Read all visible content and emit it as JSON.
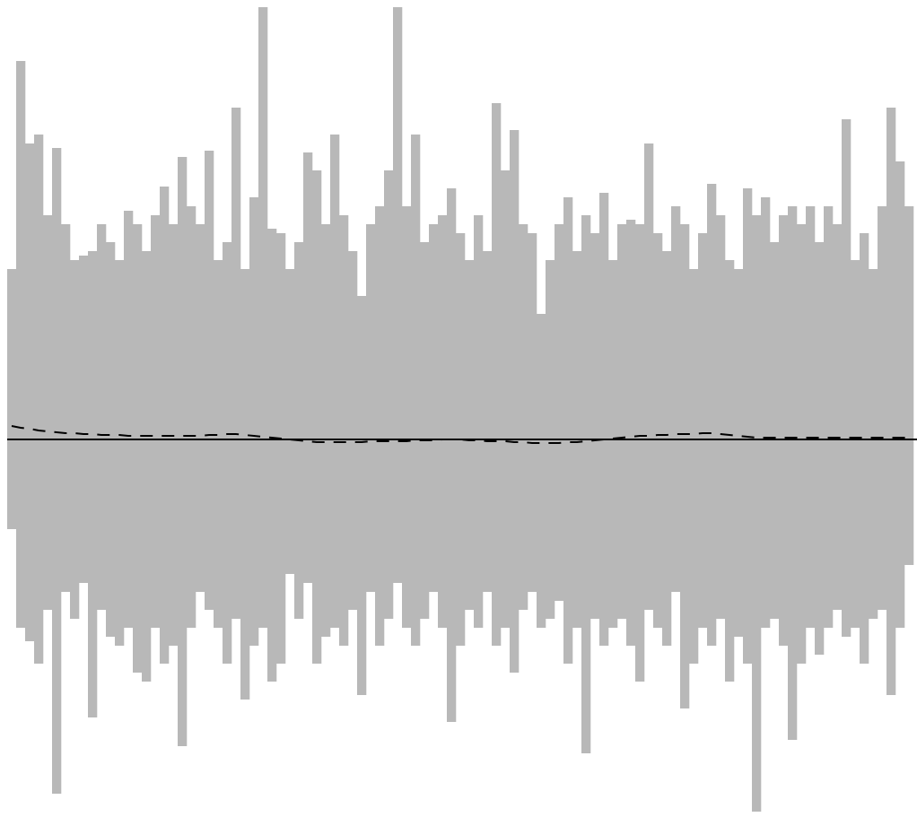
{
  "chart_data": {
    "type": "bar",
    "categories": [
      null,
      null,
      null,
      null,
      null,
      null,
      null,
      null,
      null,
      null,
      null,
      null,
      null,
      null,
      null,
      null,
      null,
      null,
      null,
      null,
      null,
      null,
      null,
      null,
      null,
      null,
      null,
      null,
      null,
      null,
      null,
      null,
      null,
      null,
      null,
      null,
      null,
      null,
      null,
      null,
      null,
      null,
      null,
      null,
      null,
      null,
      null,
      null,
      null,
      null,
      null,
      null,
      null,
      null,
      null,
      null,
      null,
      null,
      null,
      null,
      null,
      null,
      null,
      null,
      null,
      null,
      null,
      null,
      null,
      null,
      null,
      null,
      null,
      null,
      null,
      null,
      null,
      null,
      null,
      null,
      null,
      null,
      null,
      null,
      null,
      null,
      null,
      null,
      null,
      null,
      null,
      null,
      null,
      null,
      null,
      null,
      null,
      null,
      null,
      null,
      null
    ],
    "ylim": [
      -421,
      490
    ],
    "baseline": true,
    "series": [
      {
        "color": "#b8b8b8",
        "values": [
          190,
          422,
          330,
          340,
          250,
          325,
          240,
          200,
          205,
          210,
          240,
          220,
          200,
          255,
          240,
          210,
          250,
          282,
          240,
          315,
          260,
          240,
          322,
          200,
          220,
          370,
          190,
          270,
          482,
          235,
          230,
          190,
          220,
          320,
          300,
          240,
          340,
          250,
          210,
          160,
          240,
          260,
          300,
          482,
          260,
          340,
          220,
          240,
          250,
          280,
          230,
          200,
          250,
          210,
          375,
          300,
          345,
          240,
          230,
          140,
          200,
          240,
          270,
          210,
          250,
          230,
          275,
          200,
          240,
          245,
          240,
          330,
          230,
          210,
          260,
          240,
          190,
          230,
          285,
          250,
          200,
          190,
          280,
          250,
          270,
          220,
          250,
          260,
          240,
          260,
          220,
          260,
          240,
          357,
          200,
          230,
          190,
          260,
          370,
          310,
          260
        ]
      },
      {
        "color": "#b8b8b8",
        "values": [
          -100,
          -210,
          -225,
          -250,
          -190,
          -395,
          -170,
          -200,
          -160,
          -310,
          -190,
          -220,
          -230,
          -210,
          -260,
          -270,
          -210,
          -250,
          -230,
          -342,
          -210,
          -170,
          -190,
          -210,
          -250,
          -200,
          -290,
          -230,
          -210,
          -270,
          -250,
          -150,
          -200,
          -160,
          -250,
          -220,
          -210,
          -230,
          -190,
          -285,
          -170,
          -230,
          -200,
          -160,
          -210,
          -230,
          -200,
          -170,
          -210,
          -315,
          -230,
          -190,
          -210,
          -170,
          -230,
          -210,
          -260,
          -190,
          -170,
          -210,
          -200,
          -180,
          -250,
          -210,
          -350,
          -200,
          -230,
          -210,
          -200,
          -230,
          -270,
          -190,
          -210,
          -230,
          -170,
          -300,
          -250,
          -210,
          -230,
          -200,
          -270,
          -220,
          -250,
          -415,
          -210,
          -200,
          -230,
          -335,
          -250,
          -210,
          -240,
          -210,
          -190,
          -220,
          -210,
          -250,
          -200,
          -190,
          -285,
          -210,
          -140
        ]
      },
      {
        "type": "line",
        "color": "#000000",
        "dash": true,
        "values": [
          15,
          13,
          12,
          10,
          9,
          8,
          7,
          7,
          6,
          6,
          5,
          5,
          5,
          4,
          4,
          4,
          4,
          4,
          4,
          4,
          4,
          4,
          5,
          5,
          6,
          6,
          5,
          4,
          3,
          2,
          1,
          0,
          -1,
          -2,
          -3,
          -3,
          -3,
          -3,
          -3,
          -3,
          -2,
          -2,
          -2,
          -2,
          -2,
          -1,
          -1,
          -1,
          0,
          0,
          0,
          -1,
          -1,
          -2,
          -2,
          -2,
          -3,
          -3,
          -4,
          -4,
          -4,
          -4,
          -3,
          -3,
          -2,
          -1,
          0,
          1,
          2,
          3,
          4,
          4,
          5,
          5,
          6,
          6,
          6,
          7,
          7,
          6,
          5,
          4,
          3,
          2,
          2,
          2,
          2,
          2,
          2,
          2,
          2,
          2,
          2,
          2,
          2,
          2,
          2,
          2,
          2,
          2,
          2
        ]
      }
    ]
  }
}
